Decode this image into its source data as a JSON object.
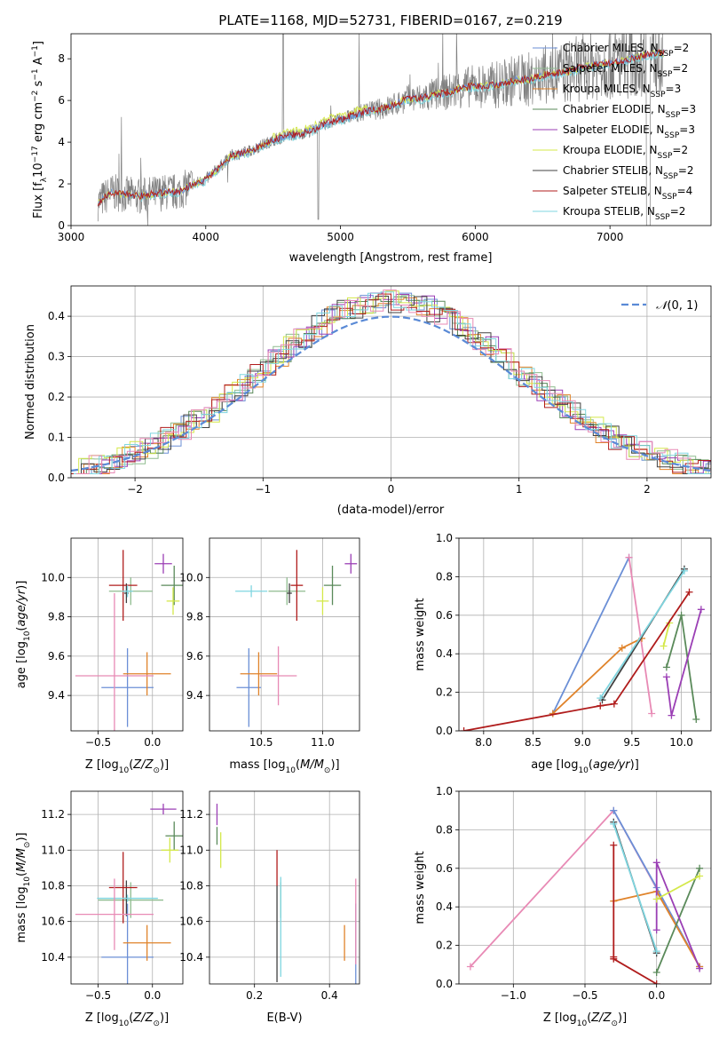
{
  "title": "PLATE=1168, MJD=52731, FIBERID=0167, z=0.219",
  "colors": {
    "Chabrier MILES": "#6b8fd6",
    "Salpeter MILES": "#8fbc8f",
    "Kroupa MILES": "#e0832a",
    "Chabrier ELODIE": "#5a8a5a",
    "Salpeter ELODIE": "#9b3fb5",
    "Kroupa ELODIE": "#d4e84a",
    "Chabrier STELIB": "#404040",
    "Salpeter STELIB": "#b01c1c",
    "Kroupa STELIB": "#7fd6e0",
    "pink": "#e88ab5",
    "data": "#808080"
  },
  "chart_data": [
    {
      "type": "line",
      "title": "PLATE=1168, MJD=52731, FIBERID=0167, z=0.219",
      "xlabel": "wavelength [Angstrom, rest frame]",
      "ylabel_parts": [
        "Flux [f",
        "λ",
        "10",
        "−17",
        " erg cm",
        "−2",
        " s",
        "−1",
        " A",
        "−1",
        "]"
      ],
      "xlim": [
        3000,
        7750
      ],
      "ylim": [
        0,
        9.2
      ],
      "xticks": [
        3000,
        4000,
        5000,
        6000,
        7000
      ],
      "yticks": [
        0,
        2,
        4,
        6,
        8
      ],
      "legend": "top-right",
      "legend_entries": [
        {
          "name": "Chabrier MILES, N",
          "sub": "SSP",
          "tail": "=2",
          "color_key": "Chabrier MILES"
        },
        {
          "name": "Salpeter MILES, N",
          "sub": "SSP",
          "tail": "=2",
          "color_key": "Salpeter MILES"
        },
        {
          "name": "Kroupa MILES, N",
          "sub": "SSP",
          "tail": "=3",
          "color_key": "Kroupa MILES"
        },
        {
          "name": "Chabrier ELODIE, N",
          "sub": "SSP",
          "tail": "=3",
          "color_key": "Chabrier ELODIE"
        },
        {
          "name": "Salpeter ELODIE, N",
          "sub": "SSP",
          "tail": "=3",
          "color_key": "Salpeter ELODIE"
        },
        {
          "name": "Kroupa ELODIE, N",
          "sub": "SSP",
          "tail": "=2",
          "color_key": "Kroupa ELODIE"
        },
        {
          "name": "Chabrier STELIB, N",
          "sub": "SSP",
          "tail": "=2",
          "color_key": "Chabrier STELIB"
        },
        {
          "name": "Salpeter STELIB, N",
          "sub": "SSP",
          "tail": "=4",
          "color_key": "Salpeter STELIB"
        },
        {
          "name": "Kroupa STELIB, N",
          "sub": "SSP",
          "tail": "=2",
          "color_key": "Kroupa STELIB"
        }
      ],
      "continuum": {
        "x": [
          3200,
          3300,
          3400,
          3500,
          3600,
          3700,
          3800,
          3900,
          4000,
          4100,
          4200,
          4300,
          4400,
          4500,
          4600,
          4700,
          4800,
          4900,
          5000,
          5100,
          5200,
          5300,
          5400,
          5500,
          5600,
          5700,
          5800,
          5900,
          6000,
          6100,
          6200,
          6300,
          6400,
          6500,
          6600,
          6700,
          6800,
          6900,
          7000,
          7100,
          7200,
          7300,
          7400
        ],
        "y": [
          1.1,
          1.6,
          1.5,
          1.4,
          1.5,
          1.6,
          1.6,
          2.0,
          2.2,
          2.8,
          3.4,
          3.5,
          3.8,
          4.1,
          4.3,
          4.4,
          4.6,
          4.9,
          5.1,
          5.3,
          5.5,
          5.6,
          5.8,
          6.1,
          6.1,
          6.3,
          6.4,
          6.6,
          6.7,
          6.7,
          6.8,
          7.0,
          7.0,
          7.2,
          7.3,
          7.4,
          7.6,
          7.7,
          7.8,
          7.9,
          8.1,
          8.2,
          8.3
        ]
      }
    },
    {
      "type": "line",
      "xlabel": "(data-model)/error",
      "ylabel": "Normed distribution",
      "xlim": [
        -2.5,
        2.5
      ],
      "ylim": [
        0,
        0.475
      ],
      "xticks": [
        -2,
        -1,
        0,
        1,
        2
      ],
      "yticks": [
        0.0,
        0.1,
        0.2,
        0.3,
        0.4
      ],
      "legend": "top-right",
      "legend_label": "N(0, 1)"
    },
    {
      "type": "scatter",
      "xlabel": "Z [log10(Z/Z☉)]",
      "ylabel": "age  [log10(age/yr)]",
      "xlim": [
        -0.75,
        0.28
      ],
      "ylim": [
        9.22,
        10.2
      ],
      "xticks": [
        -0.5,
        0.0
      ],
      "yticks": [
        9.4,
        9.6,
        9.8,
        10.0
      ],
      "points": [
        {
          "x": -0.23,
          "y": 9.44,
          "xerr": 0.24,
          "yerr": 0.2,
          "color_key": "Chabrier MILES"
        },
        {
          "x": -0.2,
          "y": 9.93,
          "xerr": 0.2,
          "yerr": 0.07,
          "color_key": "Salpeter MILES"
        },
        {
          "x": -0.05,
          "y": 9.51,
          "xerr": 0.22,
          "yerr": 0.11,
          "color_key": "Kroupa MILES"
        },
        {
          "x": 0.2,
          "y": 9.96,
          "xerr": 0.12,
          "yerr": 0.1,
          "color_key": "Chabrier ELODIE"
        },
        {
          "x": 0.1,
          "y": 10.07,
          "xerr": 0.08,
          "yerr": 0.05,
          "color_key": "Salpeter ELODIE"
        },
        {
          "x": 0.19,
          "y": 9.88,
          "xerr": 0.06,
          "yerr": 0.07,
          "color_key": "Kroupa ELODIE"
        },
        {
          "x": -0.24,
          "y": 9.92,
          "xerr": 0.02,
          "yerr": 0.05,
          "color_key": "Chabrier STELIB"
        },
        {
          "x": -0.27,
          "y": 9.96,
          "xerr": 0.13,
          "yerr": 0.18,
          "color_key": "Salpeter STELIB"
        },
        {
          "x": -0.23,
          "y": 9.93,
          "xerr": 0.05,
          "yerr": 0.03,
          "color_key": "Kroupa STELIB"
        },
        {
          "x": -0.35,
          "y": 9.5,
          "xerr": 0.36,
          "yerr": 0.42,
          "color_key": "pink"
        }
      ]
    },
    {
      "type": "scatter",
      "xlabel": "mass [log10(M/M☉)]",
      "xlim": [
        10.08,
        11.3
      ],
      "ylim": [
        9.22,
        10.2
      ],
      "xticks": [
        10.5,
        11.0
      ],
      "yticks": [
        9.4,
        9.6,
        9.8,
        10.0
      ],
      "points": [
        {
          "x": 10.4,
          "y": 9.44,
          "xerr": 0.1,
          "yerr": 0.2,
          "color_key": "Chabrier MILES"
        },
        {
          "x": 10.71,
          "y": 9.93,
          "xerr": 0.15,
          "yerr": 0.07,
          "color_key": "Salpeter MILES"
        },
        {
          "x": 10.48,
          "y": 9.51,
          "xerr": 0.15,
          "yerr": 0.11,
          "color_key": "Kroupa MILES"
        },
        {
          "x": 11.08,
          "y": 9.96,
          "xerr": 0.07,
          "yerr": 0.1,
          "color_key": "Chabrier ELODIE"
        },
        {
          "x": 11.23,
          "y": 10.07,
          "xerr": 0.05,
          "yerr": 0.05,
          "color_key": "Salpeter ELODIE"
        },
        {
          "x": 11.0,
          "y": 9.88,
          "xerr": 0.05,
          "yerr": 0.07,
          "color_key": "Kroupa ELODIE"
        },
        {
          "x": 10.73,
          "y": 9.92,
          "xerr": 0.02,
          "yerr": 0.05,
          "color_key": "Chabrier STELIB"
        },
        {
          "x": 10.79,
          "y": 9.96,
          "xerr": 0.05,
          "yerr": 0.18,
          "color_key": "Salpeter STELIB"
        },
        {
          "x": 10.42,
          "y": 9.93,
          "xerr": 0.13,
          "yerr": 0.03,
          "color_key": "Kroupa STELIB"
        },
        {
          "x": 10.64,
          "y": 9.5,
          "xerr": 0.15,
          "yerr": 0.15,
          "color_key": "pink"
        }
      ]
    },
    {
      "type": "line",
      "xlabel": "age  [log10(age/yr)]",
      "ylabel": "mass weight",
      "xlim": [
        7.75,
        10.3
      ],
      "ylim": [
        0,
        1.0
      ],
      "xticks": [
        8.0,
        8.5,
        9.0,
        9.5,
        10.0
      ],
      "yticks": [
        0.0,
        0.2,
        0.4,
        0.6,
        0.8,
        1.0
      ],
      "series": [
        {
          "color_key": "Chabrier MILES",
          "x": [
            8.7,
            9.47
          ],
          "y": [
            0.09,
            0.9
          ]
        },
        {
          "color_key": "pink",
          "x": [
            9.47,
            9.7
          ],
          "y": [
            0.9,
            0.09
          ]
        },
        {
          "color_key": "Kroupa MILES",
          "x": [
            8.7,
            9.4,
            9.6
          ],
          "y": [
            0.09,
            0.43,
            0.48
          ]
        },
        {
          "color_key": "Chabrier ELODIE",
          "x": [
            9.85,
            10.0,
            10.15
          ],
          "y": [
            0.33,
            0.6,
            0.06
          ]
        },
        {
          "color_key": "Salpeter ELODIE",
          "x": [
            9.85,
            9.9,
            10.2
          ],
          "y": [
            0.28,
            0.08,
            0.63
          ]
        },
        {
          "color_key": "Kroupa ELODIE",
          "x": [
            9.82,
            9.88
          ],
          "y": [
            0.44,
            0.56
          ]
        },
        {
          "color_key": "Chabrier STELIB",
          "x": [
            9.2,
            10.03
          ],
          "y": [
            0.16,
            0.84
          ]
        },
        {
          "color_key": "Kroupa STELIB",
          "x": [
            9.18,
            10.03
          ],
          "y": [
            0.17,
            0.83
          ]
        },
        {
          "color_key": "Salpeter STELIB",
          "x": [
            7.8,
            9.18,
            9.32,
            10.08
          ],
          "y": [
            0.0,
            0.13,
            0.14,
            0.72
          ]
        }
      ]
    },
    {
      "type": "scatter",
      "xlabel": "Z [log10(Z/Z☉)]",
      "ylabel": "mass [log10(M/M☉)]",
      "xlim": [
        -0.75,
        0.28
      ],
      "ylim": [
        10.25,
        11.33
      ],
      "xticks": [
        -0.5,
        0.0
      ],
      "yticks": [
        10.4,
        10.6,
        10.8,
        11.0,
        11.2
      ],
      "points": [
        {
          "x": -0.23,
          "y": 10.4,
          "xerr": 0.24,
          "yerr": 0.3,
          "color_key": "Chabrier MILES"
        },
        {
          "x": -0.2,
          "y": 10.72,
          "xerr": 0.3,
          "yerr": 0.1,
          "color_key": "Salpeter MILES"
        },
        {
          "x": -0.05,
          "y": 10.48,
          "xerr": 0.22,
          "yerr": 0.1,
          "color_key": "Kroupa MILES"
        },
        {
          "x": 0.2,
          "y": 11.08,
          "xerr": 0.08,
          "yerr": 0.08,
          "color_key": "Chabrier ELODIE"
        },
        {
          "x": 0.1,
          "y": 11.23,
          "xerr": 0.12,
          "yerr": 0.03,
          "color_key": "Salpeter ELODIE"
        },
        {
          "x": 0.16,
          "y": 11.0,
          "xerr": 0.08,
          "yerr": 0.07,
          "color_key": "Kroupa ELODIE"
        },
        {
          "x": -0.24,
          "y": 10.73,
          "xerr": 0.02,
          "yerr": 0.1,
          "color_key": "Chabrier STELIB"
        },
        {
          "x": -0.27,
          "y": 10.79,
          "xerr": 0.13,
          "yerr": 0.2,
          "color_key": "Salpeter STELIB"
        },
        {
          "x": -0.23,
          "y": 10.73,
          "xerr": 0.28,
          "yerr": 0.02,
          "color_key": "Kroupa STELIB"
        },
        {
          "x": -0.35,
          "y": 10.64,
          "xerr": 0.36,
          "yerr": 0.2,
          "color_key": "pink"
        }
      ]
    },
    {
      "type": "scatter",
      "xlabel": "E(B-V)",
      "xlim": [
        0.08,
        0.48
      ],
      "ylim": [
        10.25,
        11.33
      ],
      "xticks": [
        0.2,
        0.4
      ],
      "yticks": [
        10.4,
        10.6,
        10.8,
        11.0,
        11.2
      ],
      "points": [
        {
          "x": 0.47,
          "y": 10.4,
          "xerr": 0.0,
          "yerr": 0.3,
          "color_key": "Chabrier MILES"
        },
        {
          "x": 0.27,
          "y": 10.72,
          "xerr": 0.0,
          "yerr": 0.1,
          "color_key": "Salpeter MILES"
        },
        {
          "x": 0.44,
          "y": 10.48,
          "xerr": 0.0,
          "yerr": 0.1,
          "color_key": "Kroupa MILES"
        },
        {
          "x": 0.1,
          "y": 11.08,
          "xerr": 0.0,
          "yerr": 0.05,
          "color_key": "Chabrier ELODIE"
        },
        {
          "x": 0.1,
          "y": 11.2,
          "xerr": 0.0,
          "yerr": 0.06,
          "color_key": "Salpeter ELODIE"
        },
        {
          "x": 0.11,
          "y": 11.0,
          "xerr": 0.0,
          "yerr": 0.1,
          "color_key": "Kroupa ELODIE"
        },
        {
          "x": 0.26,
          "y": 10.53,
          "xerr": 0.0,
          "yerr": 0.27,
          "color_key": "Chabrier STELIB"
        },
        {
          "x": 0.26,
          "y": 10.9,
          "xerr": 0.0,
          "yerr": 0.1,
          "color_key": "Salpeter STELIB"
        },
        {
          "x": 0.27,
          "y": 10.57,
          "xerr": 0.0,
          "yerr": 0.28,
          "color_key": "Kroupa STELIB"
        },
        {
          "x": 0.47,
          "y": 10.6,
          "xerr": 0.0,
          "yerr": 0.24,
          "color_key": "pink"
        }
      ]
    },
    {
      "type": "line",
      "xlabel": "Z [log10(Z/Z☉)]",
      "ylabel": "mass weight",
      "xlim": [
        -1.38,
        0.38
      ],
      "ylim": [
        0,
        1.0
      ],
      "xticks": [
        -1.0,
        -0.5,
        0.0
      ],
      "yticks": [
        0.0,
        0.2,
        0.4,
        0.6,
        0.8,
        1.0
      ],
      "series": [
        {
          "color_key": "pink",
          "x": [
            -1.3,
            -0.3,
            0.3
          ],
          "y": [
            0.09,
            0.9,
            0.09
          ]
        },
        {
          "color_key": "Chabrier MILES",
          "x": [
            -0.3,
            0.0,
            0.3
          ],
          "y": [
            0.9,
            0.5,
            0.09
          ]
        },
        {
          "color_key": "Kroupa MILES",
          "x": [
            -0.3,
            0.0,
            0.3
          ],
          "y": [
            0.43,
            0.48,
            0.09
          ]
        },
        {
          "color_key": "Chabrier ELODIE",
          "x": [
            0.0,
            0.3
          ],
          "y": [
            0.06,
            0.6
          ]
        },
        {
          "color_key": "Salpeter ELODIE",
          "x": [
            0.0,
            0.0,
            0.3
          ],
          "y": [
            0.28,
            0.63,
            0.08
          ]
        },
        {
          "color_key": "Kroupa ELODIE",
          "x": [
            0.0,
            0.3
          ],
          "y": [
            0.44,
            0.56
          ]
        },
        {
          "color_key": "Chabrier STELIB",
          "x": [
            -0.3,
            0.0
          ],
          "y": [
            0.84,
            0.16
          ]
        },
        {
          "color_key": "Kroupa STELIB",
          "x": [
            -0.3,
            0.0
          ],
          "y": [
            0.83,
            0.17
          ]
        },
        {
          "color_key": "Salpeter STELIB",
          "x": [
            -0.3,
            -0.3,
            -0.3,
            0.0
          ],
          "y": [
            0.14,
            0.72,
            0.13,
            0.0
          ]
        }
      ]
    }
  ]
}
